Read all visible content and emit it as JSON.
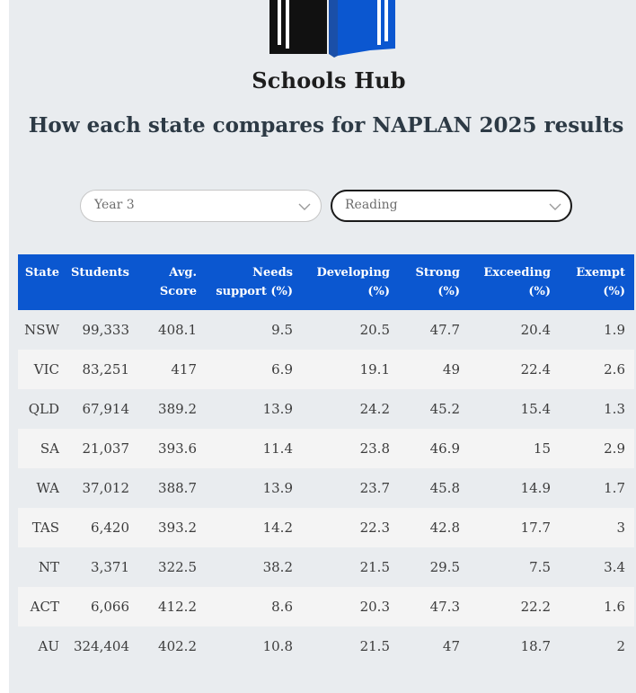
{
  "brand": "Schools Hub",
  "headline": "How each state compares for NAPLAN 2025 results",
  "filters": {
    "year": "Year 3",
    "subject": "Reading"
  },
  "table": {
    "headers": [
      "State",
      "Students",
      "Avg. Score",
      "Needs support (%)",
      "Developing (%)",
      "Strong (%)",
      "Exceeding (%)",
      "Exempt (%)"
    ],
    "rows": [
      [
        "NSW",
        "99,333",
        "408.1",
        "9.5",
        "20.5",
        "47.7",
        "20.4",
        "1.9"
      ],
      [
        "VIC",
        "83,251",
        "417",
        "6.9",
        "19.1",
        "49",
        "22.4",
        "2.6"
      ],
      [
        "QLD",
        "67,914",
        "389.2",
        "13.9",
        "24.2",
        "45.2",
        "15.4",
        "1.3"
      ],
      [
        "SA",
        "21,037",
        "393.6",
        "11.4",
        "23.8",
        "46.9",
        "15",
        "2.9"
      ],
      [
        "WA",
        "37,012",
        "388.7",
        "13.9",
        "23.7",
        "45.8",
        "14.9",
        "1.7"
      ],
      [
        "TAS",
        "6,420",
        "393.2",
        "14.2",
        "22.3",
        "42.8",
        "17.7",
        "3"
      ],
      [
        "NT",
        "3,371",
        "322.5",
        "38.2",
        "21.5",
        "29.5",
        "7.5",
        "3.4"
      ],
      [
        "ACT",
        "6,066",
        "412.2",
        "8.6",
        "20.3",
        "47.3",
        "22.2",
        "1.6"
      ],
      [
        "AU",
        "324,404",
        "402.2",
        "10.8",
        "21.5",
        "47",
        "18.7",
        "2"
      ]
    ]
  },
  "colors": {
    "header_bg": "#0b57d0",
    "logo_blue": "#0b57d0",
    "logo_black": "#111111",
    "panel_bg": "#e9ecef"
  },
  "icons": {
    "logo": "book-logo-icon",
    "dropdown": "chevron-down-icon"
  }
}
